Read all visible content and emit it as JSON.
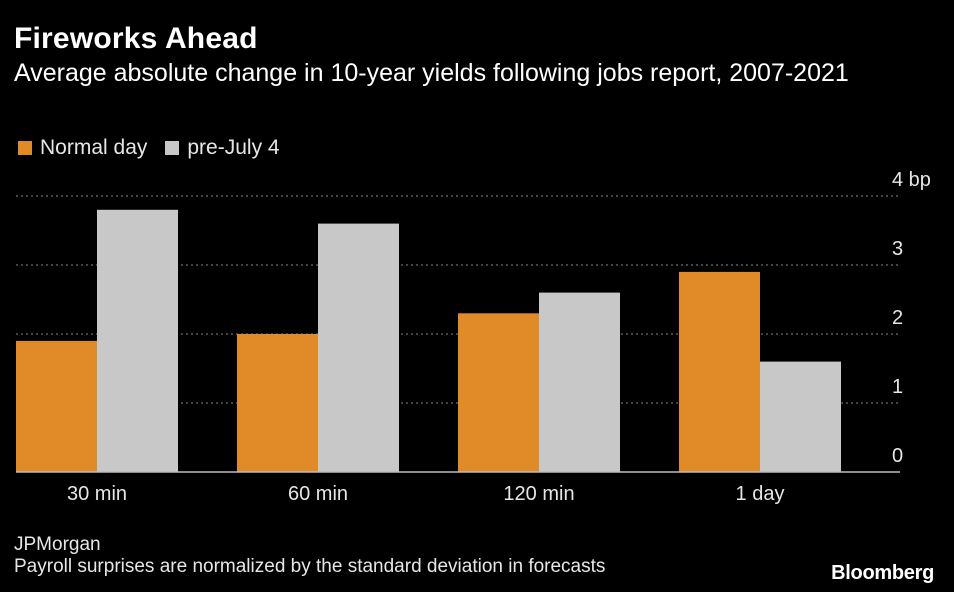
{
  "title": "Fireworks Ahead",
  "subtitle": "Average absolute change in 10-year yields following jobs report, 2007-2021",
  "legend": [
    {
      "label": "Normal day",
      "color": "#e08b27"
    },
    {
      "label": "pre-July 4",
      "color": "#c8c8c8"
    }
  ],
  "chart_data": {
    "type": "bar",
    "title": "Fireworks Ahead",
    "subtitle": "Average absolute change in 10-year yields following jobs report, 2007-2021",
    "xlabel": "",
    "ylabel": "",
    "categories": [
      "30 min",
      "60 min",
      "120 min",
      "1 day"
    ],
    "series": [
      {
        "name": "Normal day",
        "color": "#e08b27",
        "values": [
          1.9,
          2.0,
          2.3,
          2.9
        ]
      },
      {
        "name": "pre-July 4",
        "color": "#c8c8c8",
        "values": [
          3.8,
          3.6,
          2.6,
          1.6
        ]
      }
    ],
    "ylim": [
      0,
      4
    ],
    "yticks": [
      0,
      1,
      2,
      3,
      4
    ],
    "ytick_labels": [
      "0",
      "1",
      "2",
      "3",
      "4 bp"
    ],
    "grid": true,
    "legend_position": "top-left"
  },
  "footer": {
    "source": "JPMorgan",
    "note": "Payroll surprises are normalized by the standard deviation in forecasts",
    "brand": "Bloomberg"
  }
}
